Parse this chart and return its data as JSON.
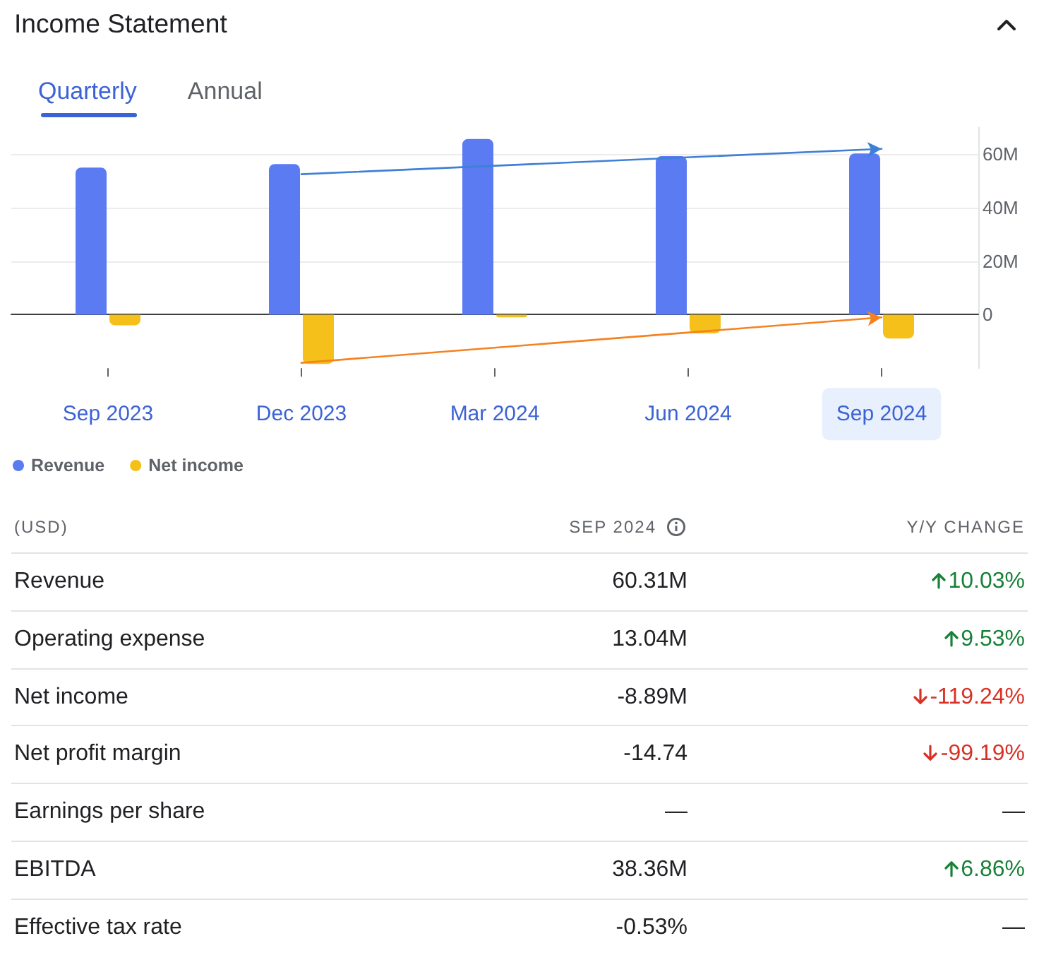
{
  "chart_data": [
    {
      "type": "bar",
      "title": "Income Statement",
      "annotations": [
        "Quarterly",
        "Annual"
      ],
      "categories": [
        "Sep 2023",
        "Dec 2023",
        "Mar 2024",
        "Jun 2024",
        "Sep 2024"
      ],
      "series": [
        {
          "name": "Revenue",
          "color": "#5b7bf3",
          "values": [
            55,
            56.3,
            65.7,
            59.3,
            60.3
          ]
        },
        {
          "name": "Net income",
          "color": "#f5c01a",
          "values": [
            -4,
            -18.4,
            -1,
            -7,
            -8.9
          ]
        },
        {
          "type": "line",
          "color": "#3f80d6",
          "x": [
            "Dec 2023",
            "Sep 2024"
          ],
          "values": [
            52.5,
            62
          ]
        },
        {
          "type": "line",
          "color": "#f5821f",
          "x": [
            "Dec 2023",
            "Sep 2024"
          ],
          "values": [
            -18,
            -1
          ]
        }
      ],
      "ylim": [
        -20,
        70
      ],
      "yticks": [
        0,
        {
          "value": 20,
          "label": "20M"
        },
        {
          "value": 40,
          "label": "40M"
        },
        {
          "value": 60,
          "label": "60M"
        }
      ],
      "grid": "y",
      "legend": "bottom left"
    },
    {
      "type": "other",
      "annotations": [
        "(USD)"
      ],
      "categories": [
        "Revenue",
        "Operating expense",
        "Net income",
        "Net profit margin",
        "Earnings per share",
        "EBITDA",
        "Effective tax rate"
      ],
      "series": [
        {
          "name": "SEP 2024",
          "values": [
            60.31,
            13.04,
            -8.89,
            -14.74,
            null,
            38.36,
            -0.53
          ],
          "value_labels": [
            "60.31M",
            "13.04M",
            "-8.89M",
            "-14.74",
            "—",
            "38.36M",
            "-0.53%"
          ]
        },
        {
          "name": "Y/Y CHANGE",
          "colors": [
            "#188038",
            "#188038",
            "#d93025",
            "#d93025",
            null,
            "#188038",
            null
          ],
          "values": [
            10.03,
            9.53,
            -119.24,
            -99.19,
            null,
            6.86,
            null
          ],
          "value_labels": [
            "10.03%",
            "9.53%",
            "-119.24%",
            "-99.19%",
            "—",
            "6.86%",
            "—"
          ]
        }
      ]
    }
  ]
}
